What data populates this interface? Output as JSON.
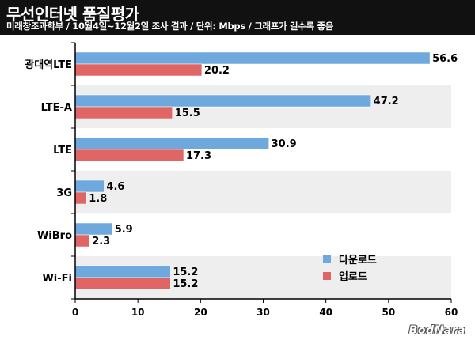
{
  "header": {
    "title": "무선인터넷 품질평가",
    "subtitle": "미래창조과학부 / 10월4일~12월2일 조사 결과 / 단위: Mbps / 그래프가 길수록 좋음"
  },
  "watermark": "BodNara",
  "colors": {
    "download": "#6fa8dc",
    "upload": "#e06666",
    "band": "#eeeeee",
    "header_bg": "#111111"
  },
  "chart_data": {
    "type": "bar",
    "orientation": "horizontal",
    "categories": [
      "광대역LTE",
      "LTE-A",
      "LTE",
      "3G",
      "WiBro",
      "Wi-Fi"
    ],
    "series": [
      {
        "name": "다운로드",
        "values": [
          56.6,
          47.2,
          30.9,
          4.6,
          5.9,
          15.2
        ]
      },
      {
        "name": "업로드",
        "values": [
          20.2,
          15.5,
          17.3,
          1.8,
          2.3,
          15.2
        ]
      }
    ],
    "xlim": [
      0,
      60
    ],
    "xticks": [
      0,
      10,
      20,
      30,
      40,
      50,
      60
    ],
    "xlabel": "",
    "ylabel": "",
    "legend_position": "bottom-right",
    "grid": false
  }
}
